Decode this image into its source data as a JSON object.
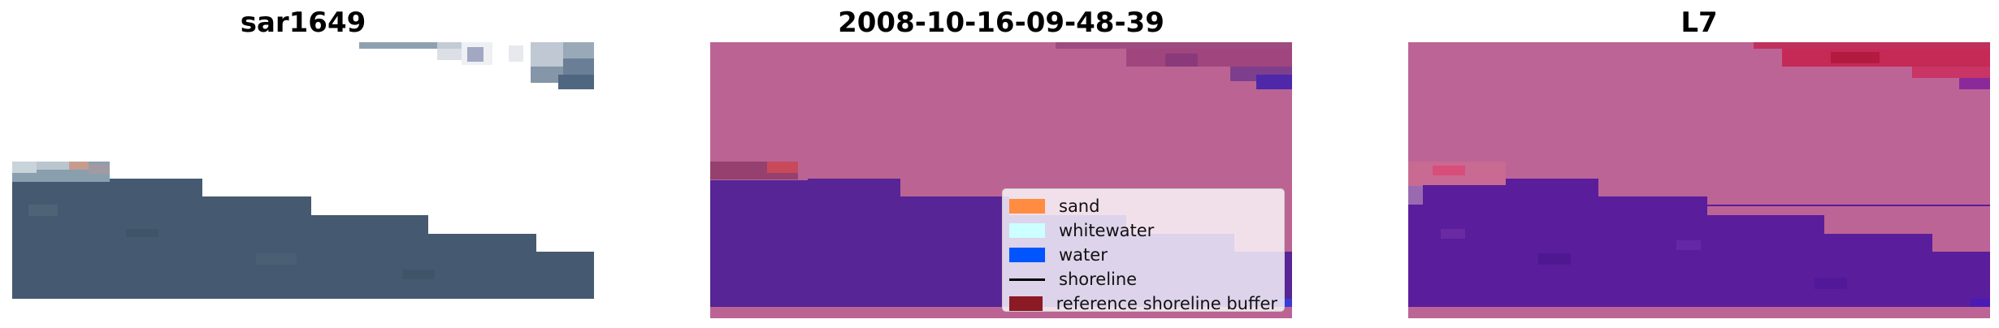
{
  "panels": [
    {
      "title": "sar1649"
    },
    {
      "title": "2008-10-16-09-48-39"
    },
    {
      "title": "L7"
    }
  ],
  "legend": {
    "items": [
      {
        "label": "sand",
        "color": "#ff8c40",
        "kind": "patch"
      },
      {
        "label": "whitewater",
        "color": "#ccffff",
        "kind": "patch"
      },
      {
        "label": "water",
        "color": "#0055ff",
        "kind": "patch"
      },
      {
        "label": "shoreline",
        "color": "#000000",
        "kind": "line"
      },
      {
        "label": "reference shoreline buffer",
        "color": "#8b1a24",
        "kind": "patch"
      }
    ]
  },
  "colors": {
    "sar_water": "#455a70",
    "classified_land": "#bb6494",
    "classified_water": "#572595",
    "l7_water": "#5a1d9c",
    "l7_land": "#bd6496",
    "l7_cloud_red": "#c21a46"
  }
}
